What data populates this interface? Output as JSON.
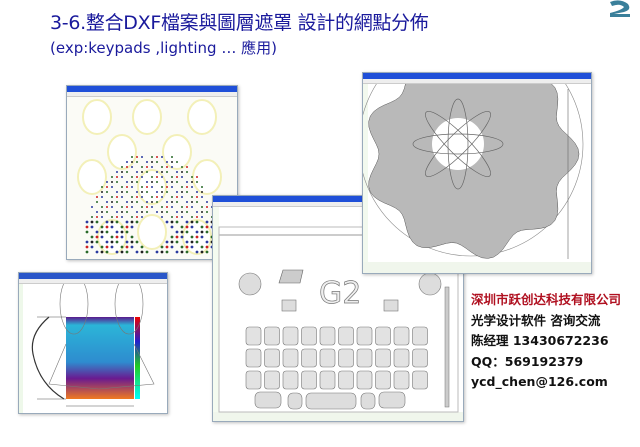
{
  "slide": {
    "title": "3-6.整合DXF檔案與圖層遮罩 設計的網點分佈",
    "subtitle": "(exp:keypads ,lighting … 應用)",
    "title_color": "#1a1a9c",
    "logo": "G2"
  },
  "screenshots": {
    "keypad_window": {
      "logo_text": "G2"
    }
  },
  "contact": {
    "company": "深圳市跃创达科技有限公司",
    "service": "光学设计软件  咨询交流",
    "manager": "陈经理   13430672236",
    "qq": "QQ：569192379",
    "email": "ycd_chen@126.com",
    "company_color": "#b01020"
  }
}
